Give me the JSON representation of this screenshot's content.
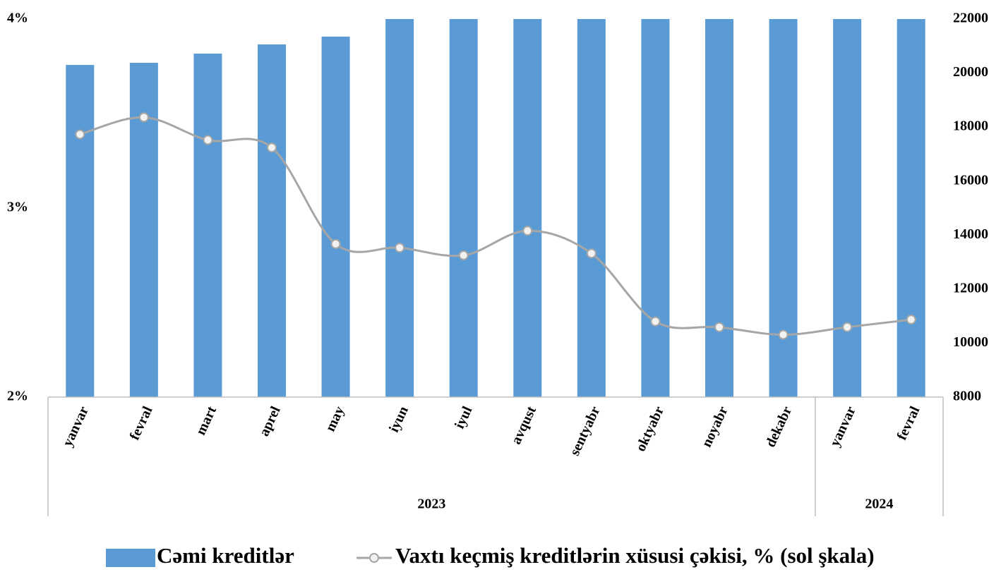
{
  "chart_data": {
    "type": "bar",
    "groups": [
      {
        "name": "2023",
        "categories": [
          "yanvar",
          "fevral",
          "mart",
          "aprel",
          "may",
          "iyun",
          "iyul",
          "avqust",
          "sentyabr",
          "oktyabr",
          "noyabr",
          "dekabr"
        ]
      },
      {
        "name": "2024",
        "categories": [
          "yanvar",
          "fevral"
        ]
      }
    ],
    "series": [
      {
        "name": "Cəmi kreditlər",
        "type": "bar",
        "axis": "y2",
        "color": "#5b9bd5",
        "values": [
          20300,
          20380,
          20720,
          21060,
          21350,
          22000,
          22000,
          22000,
          22000,
          22000,
          22000,
          22000,
          22000,
          22000
        ]
      },
      {
        "name": "Vaxtı keçmiş kreditlərin xüsusi çəkisi, % (sol şkala)",
        "type": "line",
        "color": "#a6a6a6",
        "values": [
          3.39,
          3.48,
          3.36,
          3.32,
          2.81,
          2.79,
          2.75,
          2.88,
          2.76,
          2.4,
          2.37,
          2.33,
          2.37,
          2.41
        ]
      }
    ],
    "ylim": [
      2,
      4
    ],
    "yticks": [
      {
        "value": 2,
        "label": "2%"
      },
      {
        "value": 3,
        "label": "3%"
      },
      {
        "value": 4,
        "label": "4%"
      }
    ],
    "y2lim": [
      8000,
      22000
    ],
    "y2ticks": [
      8000,
      10000,
      12000,
      14000,
      16000,
      18000,
      20000,
      22000
    ],
    "legend": "bottom"
  }
}
